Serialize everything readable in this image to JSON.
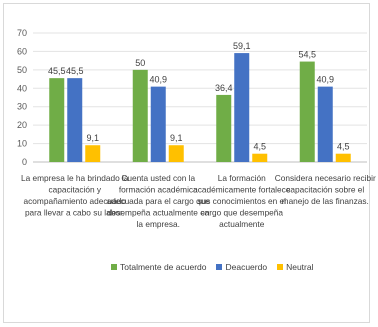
{
  "chart_data": {
    "type": "bar",
    "ylim": [
      0,
      70
    ],
    "yticks": [
      "0",
      "10",
      "20",
      "30",
      "40",
      "50",
      "60",
      "70"
    ],
    "grid": true,
    "legend_position": "bottom",
    "categories": [
      [
        "La empresa le ha brindado la",
        "capacitación  y",
        "acompañamiento adecuado",
        "para llevar a cabo su labor."
      ],
      [
        "Cuenta usted con la",
        "formación académica",
        "adecuada para el cargo que",
        "desempeña actualmente en",
        "la empresa."
      ],
      [
        "La formación",
        "académicamente fortalece",
        "sus conocimientos  en el",
        "cargo que desempeña",
        "actualmente"
      ],
      [
        "Considera necesario recibir",
        "capacitación  sobre el",
        "manejo de las finanzas."
      ]
    ],
    "series": [
      {
        "name": "Totalmente de acuerdo",
        "color": "#70AD47",
        "values": [
          45.5,
          50,
          36.4,
          54.5
        ],
        "labels": [
          "45,5",
          "50",
          "36,4",
          "54,5"
        ]
      },
      {
        "name": "Deacuerdo",
        "color": "#4472C4",
        "values": [
          45.5,
          40.9,
          59.1,
          40.9
        ],
        "labels": [
          "45,5",
          "40,9",
          "59,1",
          "40,9"
        ]
      },
      {
        "name": "Neutral",
        "color": "#FFC000",
        "values": [
          9.1,
          9.1,
          4.5,
          4.5
        ],
        "labels": [
          "9,1",
          "9,1",
          "4,5",
          "4,5"
        ]
      }
    ]
  }
}
